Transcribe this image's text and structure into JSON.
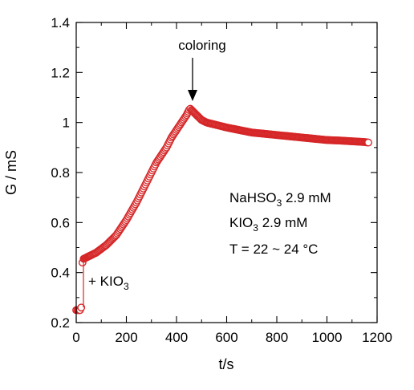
{
  "chart_data": {
    "type": "scatter",
    "xlabel": "t/s",
    "ylabel": "G / mS",
    "xlim": [
      0,
      1200
    ],
    "ylim": [
      0.2,
      1.4
    ],
    "x_ticks": [
      0,
      200,
      400,
      600,
      800,
      1000,
      1200
    ],
    "y_ticks": [
      0.2,
      0.4,
      0.6,
      0.8,
      1,
      1.2,
      1.4
    ],
    "x_tick_labels": [
      "0",
      "200",
      "400",
      "600",
      "800",
      "1000",
      "1200"
    ],
    "y_tick_labels": [
      "0.2",
      "0.4",
      "0.6",
      "0.8",
      "1",
      "1.2",
      "1.4"
    ],
    "grid": false,
    "marker_color": "#d62728",
    "series": [
      {
        "x": [
          0,
          5,
          10,
          15,
          20,
          25,
          30,
          40,
          50,
          60,
          80,
          100,
          120,
          140,
          160,
          180,
          200,
          220,
          240,
          260,
          280,
          300,
          320,
          340,
          360,
          380,
          400,
          420,
          440,
          450,
          455,
          460,
          470,
          480,
          490,
          500,
          520,
          540,
          560,
          580,
          600,
          650,
          700,
          750,
          800,
          850,
          900,
          950,
          1000,
          1050,
          1100,
          1150,
          1165
        ],
        "y": [
          0.25,
          0.25,
          0.25,
          0.25,
          0.26,
          0.44,
          0.455,
          0.46,
          0.465,
          0.47,
          0.48,
          0.495,
          0.51,
          0.53,
          0.55,
          0.58,
          0.61,
          0.645,
          0.68,
          0.72,
          0.76,
          0.8,
          0.84,
          0.87,
          0.9,
          0.94,
          0.97,
          1.0,
          1.03,
          1.05,
          1.055,
          1.05,
          1.04,
          1.03,
          1.02,
          1.01,
          1.0,
          0.995,
          0.99,
          0.985,
          0.98,
          0.97,
          0.96,
          0.955,
          0.95,
          0.945,
          0.94,
          0.935,
          0.93,
          0.928,
          0.925,
          0.922,
          0.92
        ]
      }
    ],
    "annotations": {
      "coloring": "coloring",
      "add_kio3_prefix": "+ KIO",
      "add_kio3_sub": "3",
      "cond1_prefix": "NaHSO",
      "cond1_sub": "3",
      "cond1_suffix": " 2.9 mM",
      "cond2_prefix": "KIO",
      "cond2_sub": "3",
      "cond2_suffix": " 2.9 mM",
      "cond3": "T = 22 ~ 24 °C"
    }
  }
}
